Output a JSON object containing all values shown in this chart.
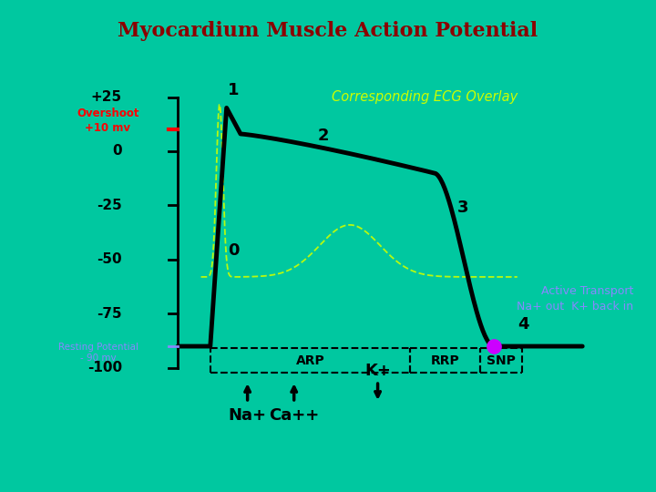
{
  "title": "Myocardium Muscle Action Potential",
  "title_color": "#8B0000",
  "title_bg": "#FFFFFF",
  "bg_color": "#00C8A0",
  "ytick_labels": [
    "+25",
    "0",
    "-25",
    "-50",
    "-75",
    "-100"
  ],
  "ytick_vals": [
    25,
    0,
    -25,
    -50,
    -75,
    -100
  ],
  "ylim": [
    -130,
    38
  ],
  "xlim": [
    -0.5,
    10.5
  ],
  "overshoot_label": "Overshoot\n+10 mv",
  "overshoot_color": "#FF0000",
  "resting_label": "Resting Potential\n- 90 mv",
  "resting_color": "#8888FF",
  "ecg_overlay_text": "Corresponding ECG Overlay",
  "ecg_overlay_color": "#CCFF00",
  "active_transport_text": "Active Transport\nNa+ out  K+ back in",
  "active_transport_color": "#8888FF",
  "arp_label": "ARP",
  "rrp_label": "RRP",
  "snp_label": "SNP",
  "na_label": "Na+",
  "ca_label": "Ca++",
  "k_label": "K+",
  "dot_color": "#CC00FF",
  "waveform_color": "#000000",
  "ecg_color": "#CCFF00"
}
